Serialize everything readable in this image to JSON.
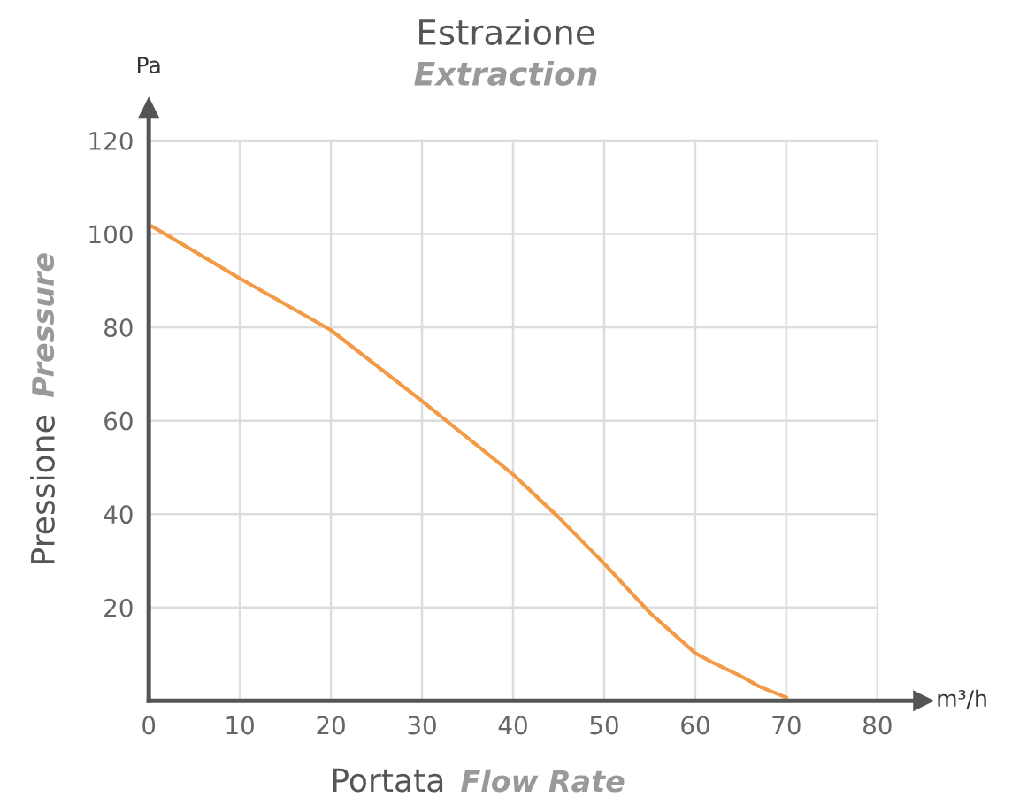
{
  "chart_data": {
    "type": "line",
    "title": "Estrazione",
    "subtitle": "Extraction",
    "xlabel": "Portata",
    "ylabel": "Pressione",
    "annotations": [
      "Flow Rate",
      "Pressure",
      "Pa",
      "m³/h"
    ],
    "series": [
      {
        "color": "#f29a45",
        "x": [
          0.4,
          10,
          20,
          30,
          40,
          45,
          50,
          55,
          60,
          62,
          65,
          67,
          70
        ],
        "values": [
          101.6,
          90.5,
          79.4,
          64.2,
          48.5,
          39.3,
          29.4,
          18.9,
          10.2,
          8.1,
          5.3,
          3.1,
          0.7
        ]
      }
    ],
    "xlim": [
      0,
      85
    ],
    "ylim": [
      0,
      127
    ],
    "xticks": [
      0,
      10,
      20,
      30,
      40,
      50,
      60,
      70,
      80
    ],
    "yticks": [
      {
        "value": 0,
        "label": null
      },
      20,
      40,
      60,
      80,
      100,
      120
    ],
    "grid": true,
    "marker": "none",
    "line_style": "solid"
  }
}
